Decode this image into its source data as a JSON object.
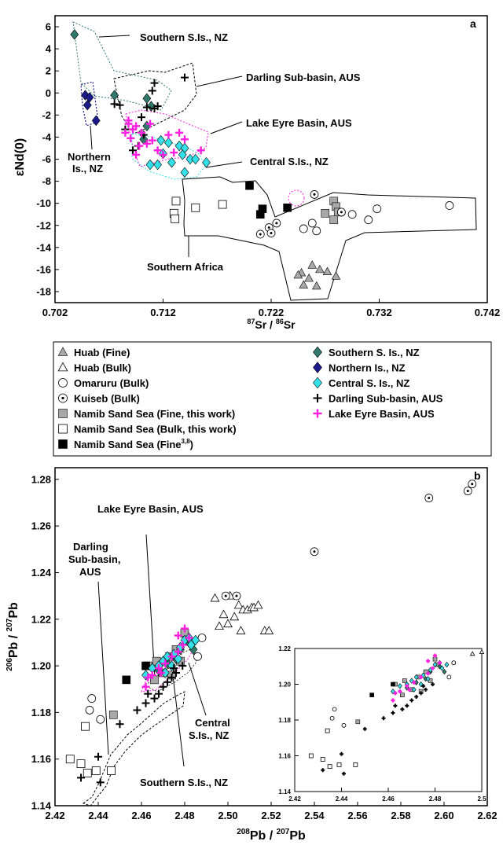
{
  "chart_data": [
    {
      "type": "scatter",
      "panel_label": "a",
      "xlabel_main": "Sr / ",
      "xlabel_sup1": "87",
      "xlabel_sup2": "86",
      "xlabel_tail": "Sr",
      "ylabel": "εNd(0)",
      "xlim": [
        0.702,
        0.742
      ],
      "ylim": [
        -19,
        7
      ],
      "xticks": [
        "0.702",
        "0.712",
        "0.722",
        "0.732",
        "0.742"
      ],
      "yticks": [
        "6",
        "4",
        "2",
        "0",
        "-2",
        "-4",
        "-6",
        "-8",
        "-10",
        "-12",
        "-14",
        "-16",
        "-18"
      ],
      "annotations": [
        {
          "text": "Southern S.Is., NZ"
        },
        {
          "text": "Darling Sub-basin, AUS"
        },
        {
          "text": "Lake Eyre Basin, AUS"
        },
        {
          "text": "Central S.Is., NZ"
        },
        {
          "text": "Northern"
        },
        {
          "text": "Is., NZ"
        },
        {
          "text": "Southern Africa"
        }
      ],
      "series": [
        {
          "key": "southern_nz",
          "points": [
            [
              0.7038,
              5.3
            ],
            [
              0.7075,
              -0.2
            ],
            [
              0.7105,
              -0.5
            ],
            [
              0.7109,
              -1.2
            ],
            [
              0.7105,
              -3.0
            ],
            [
              0.7102,
              -4.2
            ]
          ]
        },
        {
          "key": "northern_nz",
          "points": [
            [
              0.7048,
              -0.2
            ],
            [
              0.7052,
              -0.4
            ],
            [
              0.705,
              -1.1
            ],
            [
              0.7058,
              -2.5
            ]
          ]
        },
        {
          "key": "central_nz",
          "points": [
            [
              0.7118,
              -4.3
            ],
            [
              0.7125,
              -4.5
            ],
            [
              0.7135,
              -4.8
            ],
            [
              0.714,
              -5.0
            ],
            [
              0.7138,
              -5.6
            ],
            [
              0.7145,
              -6.0
            ],
            [
              0.715,
              -6.0
            ],
            [
              0.7128,
              -6.3
            ],
            [
              0.7115,
              -6.5
            ],
            [
              0.7108,
              -6.5
            ],
            [
              0.716,
              -6.3
            ],
            [
              0.714,
              -7.2
            ],
            [
              0.712,
              -5.5
            ]
          ]
        },
        {
          "key": "darling",
          "points": [
            [
              0.7112,
              0.9
            ],
            [
              0.714,
              1.4
            ],
            [
              0.7075,
              -1.0
            ],
            [
              0.711,
              0.2
            ],
            [
              0.7105,
              -1.3
            ],
            [
              0.7112,
              -1.4
            ],
            [
              0.7115,
              -1.2
            ],
            [
              0.71,
              -2.2
            ],
            [
              0.7097,
              -4.8
            ],
            [
              0.7092,
              -5.2
            ],
            [
              0.7102,
              -3.8
            ],
            [
              0.7085,
              -3.3
            ],
            [
              0.708,
              -1.1
            ]
          ]
        },
        {
          "key": "lake_eyre",
          "points": [
            [
              0.7088,
              -2.8
            ],
            [
              0.7092,
              -3.3
            ],
            [
              0.7095,
              -3.0
            ],
            [
              0.71,
              -3.6
            ],
            [
              0.709,
              -4.1
            ],
            [
              0.7085,
              -3.6
            ],
            [
              0.7105,
              -4.6
            ],
            [
              0.711,
              -4.3
            ],
            [
              0.7115,
              -5.2
            ],
            [
              0.712,
              -5.6
            ],
            [
              0.713,
              -5.4
            ],
            [
              0.7155,
              -5.2
            ],
            [
              0.7098,
              -4.8
            ],
            [
              0.7125,
              -3.8
            ],
            [
              0.7135,
              -3.6
            ],
            [
              0.7095,
              -5.6
            ],
            [
              0.7088,
              -2.5
            ],
            [
              0.7108,
              -2.8
            ],
            [
              0.714,
              -4.2
            ]
          ]
        },
        {
          "key": "namib_fine",
          "points": [
            [
              0.727,
              -10.9
            ],
            [
              0.7278,
              -9.8
            ],
            [
              0.728,
              -10.3
            ],
            [
              0.7282,
              -10.8
            ],
            [
              0.7278,
              -11.5
            ]
          ]
        },
        {
          "key": "namib_bulk",
          "points": [
            [
              0.7132,
              -9.8
            ],
            [
              0.713,
              -10.9
            ],
            [
              0.7131,
              -11.4
            ],
            [
              0.715,
              -10.4
            ],
            [
              0.7175,
              -10.1
            ]
          ]
        },
        {
          "key": "namib_fine_ref",
          "points": [
            [
              0.72,
              -8.4
            ],
            [
              0.7212,
              -10.5
            ],
            [
              0.721,
              -11.0
            ],
            [
              0.7235,
              -10.4
            ]
          ]
        },
        {
          "key": "huab_fine",
          "points": [
            [
              0.7248,
              -16.3
            ],
            [
              0.7258,
              -15.6
            ],
            [
              0.7265,
              -16.0
            ],
            [
              0.7255,
              -16.8
            ],
            [
              0.7272,
              -16.2
            ],
            [
              0.728,
              -16.6
            ],
            [
              0.725,
              -17.4
            ],
            [
              0.7262,
              -17.5
            ],
            [
              0.7245,
              -16.5
            ]
          ]
        },
        {
          "key": "omaruru",
          "points": [
            [
              0.725,
              -12.3
            ],
            [
              0.7258,
              -11.8
            ],
            [
              0.7262,
              -12.5
            ],
            [
              0.7285,
              -10.8
            ],
            [
              0.731,
              -11.5
            ],
            [
              0.7318,
              -10.5
            ],
            [
              0.7295,
              -11.0
            ],
            [
              0.7385,
              -10.2
            ]
          ]
        },
        {
          "key": "kuiseb",
          "points": [
            [
              0.721,
              -12.8
            ],
            [
              0.7218,
              -12.2
            ],
            [
              0.722,
              -12.7
            ],
            [
              0.7225,
              -11.8
            ],
            [
              0.726,
              -9.2
            ],
            [
              0.7285,
              -10.8
            ]
          ]
        }
      ]
    },
    {
      "type": "scatter",
      "panel_label": "b",
      "ylabel_sup1": "206",
      "ylabel_mid": "Pb / ",
      "ylabel_sup2": "207",
      "ylabel_tail": "Pb",
      "xlabel_sup1": "208",
      "xlabel_mid": "Pb / ",
      "xlabel_sup2": "207",
      "xlabel_tail": "Pb",
      "xlim": [
        2.42,
        2.62
      ],
      "ylim": [
        1.14,
        1.285
      ],
      "xticks": [
        "2.42",
        "2.44",
        "2.46",
        "2.48",
        "2.50",
        "2.52",
        "2.54",
        "2.56",
        "2.58",
        "2.60",
        "2.62"
      ],
      "yticks": [
        "1.14",
        "1.16",
        "1.18",
        "1.20",
        "1.22",
        "1.24",
        "1.26",
        "1.28"
      ],
      "annotations": [
        {
          "text": "Lake Eyre Basin, AUS"
        },
        {
          "text": "Darling"
        },
        {
          "text": "Sub-basin,"
        },
        {
          "text": "AUS"
        },
        {
          "text": "Central"
        },
        {
          "text": "S.Is., NZ"
        },
        {
          "text": "Southern S.Is., NZ"
        }
      ],
      "inset": {
        "xlim": [
          2.42,
          2.5
        ],
        "ylim": [
          1.14,
          1.22
        ],
        "xticks": [
          "2.42",
          "2.44",
          "2.46",
          "2.48",
          "2.5"
        ],
        "yticks": [
          "1.14",
          "1.16",
          "1.18",
          "1.20",
          "1.22"
        ]
      },
      "series": [
        {
          "key": "huab_bulk",
          "points": [
            [
              2.494,
              1.229
            ],
            [
              2.498,
              1.222
            ],
            [
              2.501,
              1.23
            ],
            [
              2.503,
              1.221
            ],
            [
              2.505,
              1.226
            ],
            [
              2.507,
              1.224
            ],
            [
              2.509,
              1.224
            ],
            [
              2.511,
              1.225
            ],
            [
              2.512,
              1.225
            ],
            [
              2.514,
              1.226
            ],
            [
              2.5,
              1.218
            ],
            [
              2.496,
              1.217
            ],
            [
              2.506,
              1.215
            ],
            [
              2.517,
              1.215
            ],
            [
              2.519,
              1.215
            ]
          ]
        },
        {
          "key": "omaruru",
          "points": [
            [
              2.437,
              1.186
            ],
            [
              2.436,
              1.181
            ],
            [
              2.441,
              1.177
            ],
            [
              2.488,
              1.212
            ],
            [
              2.486,
              1.204
            ]
          ]
        },
        {
          "key": "kuiseb",
          "points": [
            [
              2.499,
              1.23
            ],
            [
              2.504,
              1.23
            ],
            [
              2.54,
              1.249
            ],
            [
              2.593,
              1.272
            ],
            [
              2.611,
              1.275
            ],
            [
              2.613,
              1.278
            ]
          ]
        },
        {
          "key": "namib_fine",
          "points": [
            [
              2.447,
              1.179
            ],
            [
              2.463,
              1.2
            ],
            [
              2.467,
              1.202
            ],
            [
              2.47,
              1.197
            ],
            [
              2.473,
              1.204
            ],
            [
              2.476,
              1.207
            ],
            [
              2.478,
              1.202
            ],
            [
              2.48,
              1.214
            ],
            [
              2.481,
              1.211
            ],
            [
              2.474,
              1.196
            ],
            [
              2.466,
              1.194
            ]
          ]
        },
        {
          "key": "namib_bulk",
          "points": [
            [
              2.427,
              1.16
            ],
            [
              2.432,
              1.158
            ],
            [
              2.435,
              1.154
            ],
            [
              2.439,
              1.155
            ],
            [
              2.446,
              1.155
            ],
            [
              2.434,
              1.174
            ]
          ]
        },
        {
          "key": "namib_fine_ref",
          "points": [
            [
              2.453,
              1.194
            ],
            [
              2.462,
              1.2
            ]
          ]
        },
        {
          "key": "southern_nz",
          "points": [
            [
              2.468,
              1.198
            ],
            [
              2.472,
              1.201
            ],
            [
              2.476,
              1.203
            ],
            [
              2.478,
              1.207
            ],
            [
              2.482,
              1.21
            ],
            [
              2.484,
              1.207
            ]
          ]
        },
        {
          "key": "central_nz",
          "points": [
            [
              2.462,
              1.196
            ],
            [
              2.465,
              1.199
            ],
            [
              2.468,
              1.2
            ],
            [
              2.47,
              1.202
            ],
            [
              2.472,
              1.204
            ],
            [
              2.475,
              1.205
            ],
            [
              2.478,
              1.208
            ],
            [
              2.48,
              1.211
            ],
            [
              2.482,
              1.212
            ],
            [
              2.483,
              1.209
            ],
            [
              2.485,
              1.211
            ],
            [
              2.471,
              1.197
            ],
            [
              2.474,
              1.2
            ],
            [
              2.477,
              1.203
            ]
          ]
        },
        {
          "key": "darling",
          "points": [
            [
              2.432,
              1.152
            ],
            [
              2.44,
              1.161
            ],
            [
              2.45,
              1.175
            ],
            [
              2.458,
              1.181
            ],
            [
              2.462,
              1.184
            ],
            [
              2.466,
              1.186
            ],
            [
              2.468,
              1.188
            ],
            [
              2.47,
              1.191
            ],
            [
              2.472,
              1.193
            ],
            [
              2.474,
              1.195
            ],
            [
              2.476,
              1.197
            ],
            [
              2.479,
              1.2
            ],
            [
              2.475,
              1.199
            ],
            [
              2.463,
              1.188
            ],
            [
              2.441,
              1.15
            ]
          ]
        },
        {
          "key": "lake_eyre",
          "points": [
            [
              2.462,
              1.191
            ],
            [
              2.465,
              1.196
            ],
            [
              2.468,
              1.199
            ],
            [
              2.471,
              1.201
            ],
            [
              2.474,
              1.204
            ],
            [
              2.477,
              1.206
            ],
            [
              2.479,
              1.209
            ],
            [
              2.482,
              1.212
            ],
            [
              2.48,
              1.216
            ],
            [
              2.477,
              1.213
            ],
            [
              2.463,
              1.195
            ],
            [
              2.469,
              1.197
            ]
          ]
        }
      ]
    }
  ],
  "legend": {
    "left": [
      {
        "key": "huab_fine",
        "label": "Huab (Fine)",
        "sup": ""
      },
      {
        "key": "huab_bulk",
        "label": "Huab (Bulk)",
        "sup": ""
      },
      {
        "key": "omaruru",
        "label": "Omaruru (Bulk)",
        "sup": ""
      },
      {
        "key": "kuiseb",
        "label": "Kuiseb (Bulk)",
        "sup": ""
      },
      {
        "key": "namib_fine",
        "label": "Namib Sand Sea (Fine, this work)",
        "sup": ""
      },
      {
        "key": "namib_bulk",
        "label": "Namib Sand Sea (Bulk, this work)",
        "sup": ""
      },
      {
        "key": "namib_fine_ref",
        "label": "Namib Sand Sea (Fine",
        "sup": "3,8",
        "tail": ")"
      }
    ],
    "right": [
      {
        "key": "southern_nz",
        "label": "Southern S. Is., NZ",
        "sup": ""
      },
      {
        "key": "northern_nz",
        "label": "Northern Is., NZ",
        "sup": ""
      },
      {
        "key": "central_nz",
        "label": "Central S. Is., NZ",
        "sup": ""
      },
      {
        "key": "darling",
        "label": "Darling Sub-basin, AUS",
        "sup": ""
      },
      {
        "key": "lake_eyre",
        "label": "Lake Eyre Basin, AUS",
        "sup": ""
      }
    ]
  },
  "colors": {
    "southern_nz": "#2f7a6c",
    "northern_nz": "#1a1a8c",
    "central_nz": "#33e0e8",
    "darling": "#000000",
    "lake_eyre": "#ff1fe0",
    "namib_fine": "#a8a8a8",
    "huab_fine": "#a8a8a8",
    "outline": "#000000"
  }
}
